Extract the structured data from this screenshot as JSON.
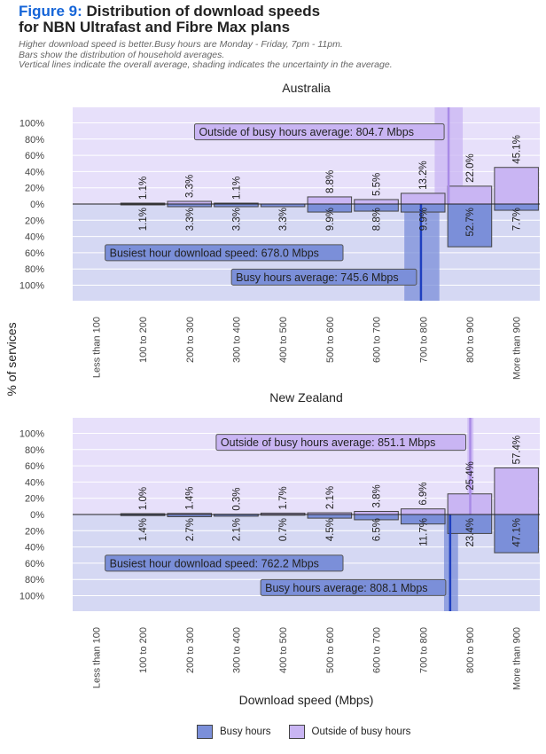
{
  "header": {
    "figure_label": "Figure 9:",
    "title_line1": "Distribution of download speeds",
    "title_line2": "for NBN Ultrafast and Fibre Max plans",
    "subtitle_lines": [
      "Higher download speed is better.Busy hours are Monday - Friday, 7pm - 11pm.",
      "Bars show the distribution of household averages.",
      "Vertical lines indicate the overall average, shading indicates the uncertainty in the average."
    ]
  },
  "colors": {
    "busy": "#7b8fd9",
    "outside": "#c9b5f3",
    "busy_line": "#1f3fbf",
    "outside_line": "#a98be6",
    "panel_bg": "#d5d8f3",
    "panel_bg_top": "#e7e0fa",
    "title_blue": "#1565d8"
  },
  "legend": {
    "busy_label": "Busy hours",
    "outside_label": "Outside of busy hours"
  },
  "chart_data": [
    {
      "type": "bar",
      "title": "Australia",
      "xlabel": "",
      "ylabel": "% of services",
      "categories": [
        "Less than 100",
        "100 to 200",
        "200 to 300",
        "300 to 400",
        "400 to 500",
        "500 to 600",
        "600 to 700",
        "700 to 800",
        "800 to 900",
        "More than 900"
      ],
      "y_ticks": [
        "100%",
        "80%",
        "60%",
        "40%",
        "20%",
        "0%",
        "20%",
        "40%",
        "60%",
        "80%",
        "100%"
      ],
      "series": [
        {
          "name": "Outside of busy hours",
          "direction": "up",
          "values": [
            null,
            1.1,
            3.3,
            1.1,
            null,
            8.8,
            5.5,
            13.2,
            22.0,
            45.1
          ],
          "labels": [
            "",
            "1.1%",
            "3.3%",
            "1.1%",
            "",
            "8.8%",
            "5.5%",
            "13.2%",
            "22.0%",
            "45.1%"
          ]
        },
        {
          "name": "Busy hours",
          "direction": "down",
          "values": [
            null,
            1.1,
            3.3,
            3.3,
            3.3,
            9.9,
            8.8,
            9.9,
            52.7,
            7.7
          ],
          "labels": [
            "",
            "1.1%",
            "3.3%",
            "3.3%",
            "3.3%",
            "9.9%",
            "8.8%",
            "9.9%",
            "52.7%",
            "7.7%"
          ]
        }
      ],
      "averages": {
        "outside": {
          "value": 804.7,
          "label": "Outside of busy hours average: 804.7 Mbps",
          "band": [
            775,
            835
          ]
        },
        "busy": {
          "value": 745.6,
          "label": "Busy hours average: 745.6 Mbps",
          "band": [
            710,
            785
          ]
        },
        "busiest": {
          "label": "Busiest hour download speed: 678.0 Mbps"
        }
      }
    },
    {
      "type": "bar",
      "title": "New Zealand",
      "xlabel": "Download speed (Mbps)",
      "ylabel": "",
      "categories": [
        "Less than 100",
        "100 to 200",
        "200 to 300",
        "300 to 400",
        "400 to 500",
        "500 to 600",
        "600 to 700",
        "700 to 800",
        "800 to 900",
        "More than 900"
      ],
      "y_ticks": [
        "100%",
        "80%",
        "60%",
        "40%",
        "20%",
        "0%",
        "20%",
        "40%",
        "60%",
        "80%",
        "100%"
      ],
      "series": [
        {
          "name": "Outside of busy hours",
          "direction": "up",
          "values": [
            null,
            1.0,
            1.4,
            0.3,
            1.7,
            2.1,
            3.8,
            6.9,
            25.4,
            57.4
          ],
          "labels": [
            "",
            "1.0%",
            "1.4%",
            "0.3%",
            "1.7%",
            "2.1%",
            "3.8%",
            "6.9%",
            "25.4%",
            "57.4%"
          ]
        },
        {
          "name": "Busy hours",
          "direction": "down",
          "values": [
            null,
            1.4,
            2.7,
            2.1,
            0.7,
            4.5,
            6.5,
            11.7,
            23.4,
            47.1
          ],
          "labels": [
            "",
            "1.4%",
            "2.7%",
            "2.1%",
            "0.7%",
            "4.5%",
            "6.5%",
            "11.7%",
            "23.4%",
            "47.1%"
          ]
        }
      ],
      "averages": {
        "outside": {
          "value": 851.1,
          "label": "Outside of busy hours average: 851.1 Mbps",
          "band": [
            845,
            858
          ]
        },
        "busy": {
          "value": 808.1,
          "label": "Busy hours average: 808.1 Mbps",
          "band": [
            795,
            825
          ]
        },
        "busiest": {
          "label": "Busiest hour download speed: 762.2 Mbps"
        }
      }
    }
  ]
}
